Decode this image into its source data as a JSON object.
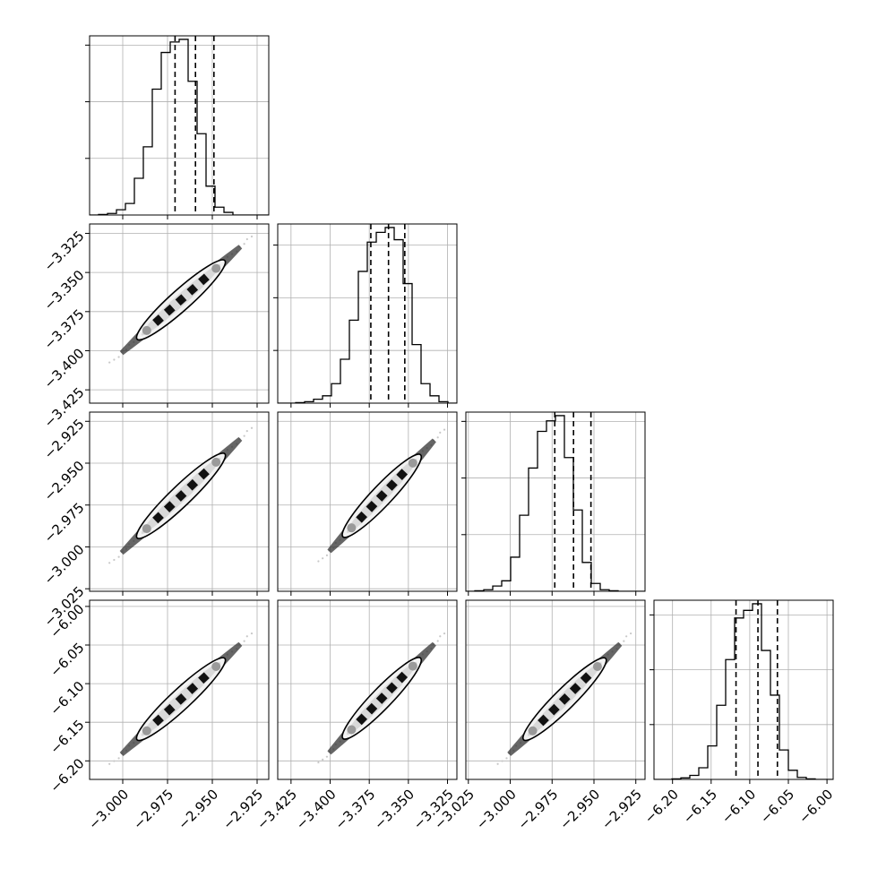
{
  "chart_data": {
    "type": "corner",
    "grid": true,
    "ticks": [
      [
        -3.0,
        -2.975,
        -2.95,
        -2.925
      ],
      [
        -3.425,
        -3.4,
        -3.375,
        -3.35,
        -3.325
      ],
      [
        -3.025,
        -3.0,
        -2.975,
        -2.95,
        -2.925
      ],
      [
        -6.2,
        -6.15,
        -6.1,
        -6.05,
        -6.0
      ]
    ],
    "tick_labels": [
      [
        "−3.000",
        "−2.975",
        "−2.950",
        "−2.925"
      ],
      [
        "−3.425",
        "−3.400",
        "−3.375",
        "−3.350",
        "−3.325"
      ],
      [
        "−3.025",
        "−3.000",
        "−2.975",
        "−2.950",
        "−2.925"
      ],
      [
        "−6.20",
        "−6.15",
        "−6.10",
        "−6.05",
        "−6.00"
      ]
    ],
    "ranges": [
      [
        -3.0185,
        -2.9185
      ],
      [
        -3.4335,
        -3.319
      ],
      [
        -3.0265,
        -2.9195
      ],
      [
        -6.224,
        -5.992
      ]
    ],
    "histograms": [
      {
        "bin_edges": [
          -3.0185,
          -3.0135,
          -3.0085,
          -3.0035,
          -2.9985,
          -2.9935,
          -2.9885,
          -2.9835,
          -2.9785,
          -2.9735,
          -2.9685,
          -2.9635,
          -2.9585,
          -2.9535,
          -2.9485,
          -2.9435,
          -2.9385,
          -2.9335,
          -2.9285,
          -2.9235,
          -2.9185
        ],
        "counts": [
          0,
          1,
          3,
          10,
          22,
          70,
          130,
          240,
          310,
          330,
          335,
          255,
          155,
          55,
          15,
          5,
          0,
          0,
          0,
          0
        ],
        "quantiles": [
          -2.9708,
          -2.9594,
          -2.9491
        ]
      },
      {
        "bin_edges": [
          -3.4335,
          -3.42777,
          -3.42205,
          -3.41632,
          -3.4106,
          -3.40487,
          -3.39915,
          -3.39342,
          -3.3877,
          -3.38197,
          -3.37625,
          -3.37052,
          -3.3648,
          -3.35907,
          -3.35335,
          -3.34762,
          -3.3419,
          -3.33617,
          -3.33045,
          -3.32472,
          -3.319
        ],
        "counts": [
          0,
          0,
          1,
          3,
          8,
          15,
          40,
          90,
          170,
          270,
          330,
          350,
          360,
          335,
          245,
          120,
          40,
          15,
          3,
          0
        ],
        "quantiles": [
          -3.374,
          -3.3627,
          -3.3523
        ]
      },
      {
        "bin_edges": [
          -3.0265,
          -3.02115,
          -3.0158,
          -3.01045,
          -3.0051,
          -2.99975,
          -2.9944,
          -2.98905,
          -2.9837,
          -2.97835,
          -2.973,
          -2.96765,
          -2.9623,
          -2.95695,
          -2.9516,
          -2.94625,
          -2.9409,
          -2.93555,
          -2.9302,
          -2.92485,
          -2.9195
        ],
        "counts": [
          0,
          1,
          3,
          10,
          20,
          65,
          145,
          235,
          305,
          325,
          335,
          255,
          155,
          55,
          15,
          3,
          1,
          0,
          0,
          0
        ],
        "quantiles": [
          -2.9734,
          -2.9622,
          -2.9518
        ]
      },
      {
        "bin_edges": [
          -6.224,
          -6.2124,
          -6.2008,
          -6.1892,
          -6.1776,
          -6.166,
          -6.1544,
          -6.1428,
          -6.1312,
          -6.1196,
          -6.108,
          -6.0964,
          -6.0848,
          -6.0732,
          -6.0616,
          -6.05,
          -6.0384,
          -6.0268,
          -6.0152,
          -6.0036,
          -5.992
        ],
        "counts": [
          0,
          0,
          1,
          3,
          8,
          23,
          66,
          146,
          236,
          318,
          333,
          346,
          254,
          166,
          58,
          18,
          4,
          1,
          0,
          0
        ],
        "quantiles": [
          -6.1178,
          -6.0894,
          -6.0642
        ]
      }
    ],
    "scatter_panels": [
      {
        "row": 1,
        "col": 0,
        "line": [
          [
            -3.007,
            -3.408
          ],
          [
            -2.928,
            -3.327
          ]
        ]
      },
      {
        "row": 2,
        "col": 0,
        "line": [
          [
            -3.007,
            -3.01
          ],
          [
            -2.928,
            -2.929
          ]
        ]
      },
      {
        "row": 2,
        "col": 1,
        "line": [
          [
            -3.407,
            -3.009
          ],
          [
            -3.327,
            -2.93
          ]
        ]
      },
      {
        "row": 3,
        "col": 0,
        "line": [
          [
            -3.007,
            -6.205
          ],
          [
            -2.928,
            -6.035
          ]
        ]
      },
      {
        "row": 3,
        "col": 1,
        "line": [
          [
            -3.407,
            -6.203
          ],
          [
            -3.327,
            -6.035
          ]
        ]
      },
      {
        "row": 3,
        "col": 2,
        "line": [
          [
            -3.007,
            -6.205
          ],
          [
            -2.928,
            -6.035
          ]
        ]
      }
    ],
    "colors": {
      "line": "#000000",
      "grid": "#b0b0b0",
      "scatter": "#333333",
      "square": "#111111",
      "marker": "#9a9a9a"
    }
  }
}
